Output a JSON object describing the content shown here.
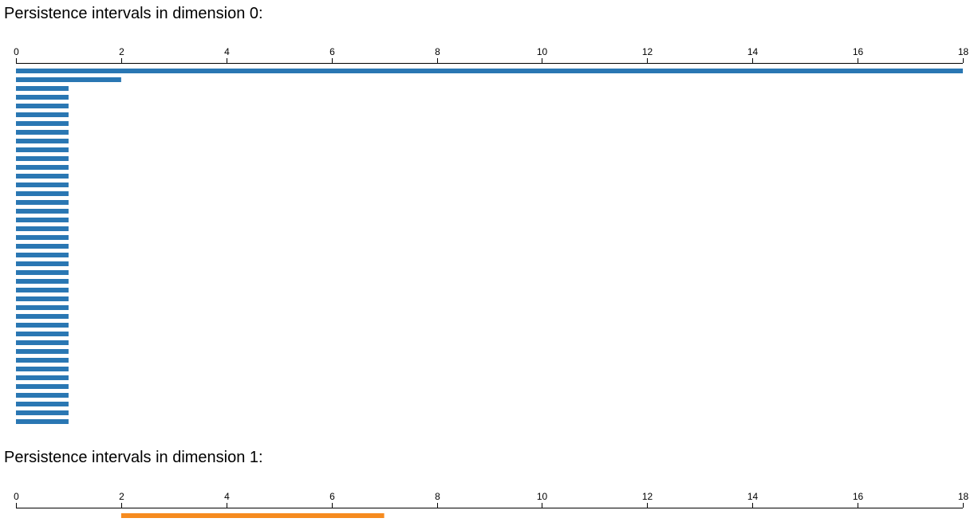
{
  "colors": {
    "dimension_0": "#2a77b3",
    "dimension_1": "#f68b1f"
  },
  "chart_data": [
    {
      "type": "bar",
      "orientation": "horizontal-intervals",
      "title": "Persistence intervals in dimension 0:",
      "xlim": [
        0,
        18
      ],
      "x_ticks": [
        "0",
        "2",
        "4",
        "6",
        "8",
        "10",
        "12",
        "14",
        "16",
        "18"
      ],
      "grid": false,
      "intervals": [
        {
          "start": 0,
          "end": 18
        },
        {
          "start": 0,
          "end": 2
        },
        {
          "start": 0,
          "end": 1
        },
        {
          "start": 0,
          "end": 1
        },
        {
          "start": 0,
          "end": 1
        },
        {
          "start": 0,
          "end": 1
        },
        {
          "start": 0,
          "end": 1
        },
        {
          "start": 0,
          "end": 1
        },
        {
          "start": 0,
          "end": 1
        },
        {
          "start": 0,
          "end": 1
        },
        {
          "start": 0,
          "end": 1
        },
        {
          "start": 0,
          "end": 1
        },
        {
          "start": 0,
          "end": 1
        },
        {
          "start": 0,
          "end": 1
        },
        {
          "start": 0,
          "end": 1
        },
        {
          "start": 0,
          "end": 1
        },
        {
          "start": 0,
          "end": 1
        },
        {
          "start": 0,
          "end": 1
        },
        {
          "start": 0,
          "end": 1
        },
        {
          "start": 0,
          "end": 1
        },
        {
          "start": 0,
          "end": 1
        },
        {
          "start": 0,
          "end": 1
        },
        {
          "start": 0,
          "end": 1
        },
        {
          "start": 0,
          "end": 1
        },
        {
          "start": 0,
          "end": 1
        },
        {
          "start": 0,
          "end": 1
        },
        {
          "start": 0,
          "end": 1
        },
        {
          "start": 0,
          "end": 1
        },
        {
          "start": 0,
          "end": 1
        },
        {
          "start": 0,
          "end": 1
        },
        {
          "start": 0,
          "end": 1
        },
        {
          "start": 0,
          "end": 1
        },
        {
          "start": 0,
          "end": 1
        },
        {
          "start": 0,
          "end": 1
        },
        {
          "start": 0,
          "end": 1
        },
        {
          "start": 0,
          "end": 1
        },
        {
          "start": 0,
          "end": 1
        },
        {
          "start": 0,
          "end": 1
        },
        {
          "start": 0,
          "end": 1
        },
        {
          "start": 0,
          "end": 1
        },
        {
          "start": 0,
          "end": 1
        }
      ]
    },
    {
      "type": "bar",
      "orientation": "horizontal-intervals",
      "title": "Persistence intervals in dimension 1:",
      "xlim": [
        0,
        18
      ],
      "x_ticks": [
        "0",
        "2",
        "4",
        "6",
        "8",
        "10",
        "12",
        "14",
        "16",
        "18"
      ],
      "grid": false,
      "intervals": [
        {
          "start": 2,
          "end": 7
        }
      ]
    }
  ]
}
